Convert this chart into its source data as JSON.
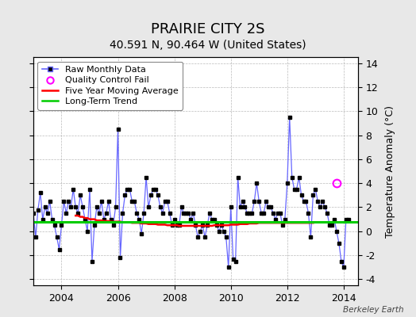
{
  "title": "PRAIRIE CITY 2S",
  "subtitle": "40.591 N, 90.464 W (United States)",
  "ylabel": "Temperature Anomaly (°C)",
  "watermark": "Berkeley Earth",
  "xlim": [
    2003.0,
    2014.5
  ],
  "ylim": [
    -4.5,
    14.5
  ],
  "yticks": [
    -4,
    -2,
    0,
    2,
    4,
    6,
    8,
    10,
    12,
    14
  ],
  "xticks": [
    2004,
    2006,
    2008,
    2010,
    2012,
    2014
  ],
  "long_term_trend_y": 0.8,
  "background_color": "#e8e8e8",
  "plot_bg_color": "#ffffff",
  "raw_color": "#6666ff",
  "marker_color": "#000000",
  "moving_avg_color": "#ff0000",
  "trend_color": "#00cc00",
  "qc_fail_color": "#ff00ff",
  "qc_fail_x": 2013.75,
  "qc_fail_y": 4.0,
  "monthly_x": [
    2003.0,
    2003.083,
    2003.167,
    2003.25,
    2003.333,
    2003.417,
    2003.5,
    2003.583,
    2003.667,
    2003.75,
    2003.833,
    2003.917,
    2004.0,
    2004.083,
    2004.167,
    2004.25,
    2004.333,
    2004.417,
    2004.5,
    2004.583,
    2004.667,
    2004.75,
    2004.833,
    2004.917,
    2005.0,
    2005.083,
    2005.167,
    2005.25,
    2005.333,
    2005.417,
    2005.5,
    2005.583,
    2005.667,
    2005.75,
    2005.833,
    2005.917,
    2006.0,
    2006.083,
    2006.167,
    2006.25,
    2006.333,
    2006.417,
    2006.5,
    2006.583,
    2006.667,
    2006.75,
    2006.833,
    2006.917,
    2007.0,
    2007.083,
    2007.167,
    2007.25,
    2007.333,
    2007.417,
    2007.5,
    2007.583,
    2007.667,
    2007.75,
    2007.833,
    2007.917,
    2008.0,
    2008.083,
    2008.167,
    2008.25,
    2008.333,
    2008.417,
    2008.5,
    2008.583,
    2008.667,
    2008.75,
    2008.833,
    2008.917,
    2009.0,
    2009.083,
    2009.167,
    2009.25,
    2009.333,
    2009.417,
    2009.5,
    2009.583,
    2009.667,
    2009.75,
    2009.833,
    2009.917,
    2010.0,
    2010.083,
    2010.167,
    2010.25,
    2010.333,
    2010.417,
    2010.5,
    2010.583,
    2010.667,
    2010.75,
    2010.833,
    2010.917,
    2011.0,
    2011.083,
    2011.167,
    2011.25,
    2011.333,
    2011.417,
    2011.5,
    2011.583,
    2011.667,
    2011.75,
    2011.833,
    2011.917,
    2012.0,
    2012.083,
    2012.167,
    2012.25,
    2012.333,
    2012.417,
    2012.5,
    2012.583,
    2012.667,
    2012.75,
    2012.833,
    2012.917,
    2013.0,
    2013.083,
    2013.167,
    2013.25,
    2013.333,
    2013.417,
    2013.5,
    2013.583,
    2013.667,
    2013.75,
    2013.833,
    2013.917,
    2014.0,
    2014.083,
    2014.167
  ],
  "monthly_y": [
    1.5,
    -0.5,
    1.8,
    3.2,
    1.0,
    2.0,
    1.5,
    2.5,
    1.0,
    0.5,
    -0.5,
    -1.5,
    0.5,
    2.5,
    1.5,
    2.5,
    2.0,
    3.5,
    2.0,
    1.5,
    3.0,
    2.0,
    1.0,
    0.0,
    3.5,
    -2.5,
    0.5,
    2.0,
    1.5,
    2.5,
    1.0,
    1.5,
    2.5,
    1.0,
    0.5,
    2.0,
    8.5,
    -2.2,
    1.5,
    3.0,
    3.5,
    3.5,
    2.5,
    2.5,
    1.5,
    1.0,
    -0.2,
    1.5,
    4.5,
    2.0,
    3.0,
    3.5,
    3.5,
    3.0,
    2.0,
    1.5,
    2.5,
    2.5,
    1.5,
    0.5,
    1.0,
    0.5,
    0.5,
    2.0,
    1.5,
    1.5,
    1.5,
    1.0,
    1.5,
    0.5,
    -0.5,
    0.0,
    0.5,
    -0.5,
    0.5,
    1.5,
    1.0,
    1.0,
    0.5,
    0.0,
    0.5,
    0.0,
    -0.5,
    -3.0,
    2.0,
    -2.3,
    -2.5,
    4.5,
    2.0,
    2.5,
    2.0,
    1.5,
    1.5,
    1.5,
    2.5,
    4.0,
    2.5,
    1.5,
    1.5,
    2.5,
    2.0,
    2.0,
    1.5,
    1.0,
    1.5,
    1.5,
    0.5,
    1.0,
    4.0,
    9.5,
    4.5,
    3.5,
    3.5,
    4.5,
    3.0,
    2.5,
    2.5,
    1.5,
    -0.5,
    3.0,
    3.5,
    2.5,
    2.0,
    2.5,
    2.0,
    1.5,
    0.5,
    0.5,
    1.0,
    0.0,
    -1.0,
    -2.5,
    -3.0,
    1.0,
    1.0
  ],
  "moving_avg_x": [
    2004.5,
    2004.583,
    2004.667,
    2004.75,
    2004.833,
    2004.917,
    2005.0,
    2005.083,
    2005.167,
    2005.25,
    2005.333,
    2005.417,
    2005.5,
    2005.583,
    2005.667,
    2005.75,
    2005.833,
    2005.917,
    2006.0,
    2006.083,
    2006.167,
    2006.25,
    2006.333,
    2006.417,
    2006.5,
    2006.583,
    2006.667,
    2006.75,
    2006.833,
    2006.917,
    2007.0,
    2007.083,
    2007.167,
    2007.25,
    2007.333,
    2007.417,
    2007.5,
    2007.583,
    2007.667,
    2007.75,
    2007.833,
    2007.917,
    2008.0,
    2008.083,
    2008.167,
    2008.25,
    2008.333,
    2008.417,
    2008.5,
    2008.583,
    2008.667,
    2008.75,
    2008.833,
    2008.917,
    2009.0,
    2009.083,
    2009.167,
    2009.25,
    2009.333,
    2009.417,
    2009.5,
    2009.583,
    2009.667,
    2009.75,
    2009.833,
    2009.917,
    2010.0,
    2010.083,
    2010.167,
    2010.25,
    2010.333,
    2010.417,
    2010.5,
    2010.583,
    2010.667,
    2010.75,
    2010.833,
    2010.917,
    2011.0,
    2011.083,
    2011.167,
    2011.25,
    2011.333,
    2011.417,
    2011.5,
    2011.583,
    2011.667,
    2011.75,
    2011.833,
    2011.917,
    2012.0,
    2012.083,
    2012.167,
    2012.25,
    2012.333,
    2012.417,
    2012.5,
    2012.583,
    2012.667,
    2012.75,
    2012.833,
    2012.917
  ],
  "moving_avg_y": [
    1.3,
    1.3,
    1.2,
    1.2,
    1.1,
    1.1,
    1.0,
    1.0,
    1.0,
    0.9,
    0.9,
    0.9,
    0.85,
    0.85,
    0.85,
    0.8,
    0.8,
    0.8,
    0.8,
    0.8,
    0.75,
    0.75,
    0.75,
    0.75,
    0.7,
    0.7,
    0.7,
    0.7,
    0.65,
    0.65,
    0.65,
    0.6,
    0.6,
    0.6,
    0.6,
    0.55,
    0.55,
    0.55,
    0.55,
    0.5,
    0.5,
    0.5,
    0.5,
    0.5,
    0.45,
    0.45,
    0.45,
    0.45,
    0.45,
    0.45,
    0.45,
    0.45,
    0.45,
    0.45,
    0.45,
    0.45,
    0.45,
    0.45,
    0.45,
    0.5,
    0.5,
    0.5,
    0.5,
    0.5,
    0.5,
    0.5,
    0.55,
    0.55,
    0.55,
    0.55,
    0.6,
    0.6,
    0.6,
    0.6,
    0.65,
    0.65,
    0.65,
    0.65,
    0.7,
    0.7,
    0.7,
    0.7,
    0.7,
    0.7,
    0.7,
    0.7,
    0.7,
    0.7,
    0.7,
    0.7,
    0.7,
    0.7,
    0.7,
    0.7,
    0.7,
    0.7,
    0.7,
    0.7,
    0.7,
    0.7,
    0.7,
    0.7
  ],
  "title_fontsize": 13,
  "subtitle_fontsize": 10,
  "tick_fontsize": 9,
  "legend_fontsize": 8,
  "ylabel_fontsize": 9
}
